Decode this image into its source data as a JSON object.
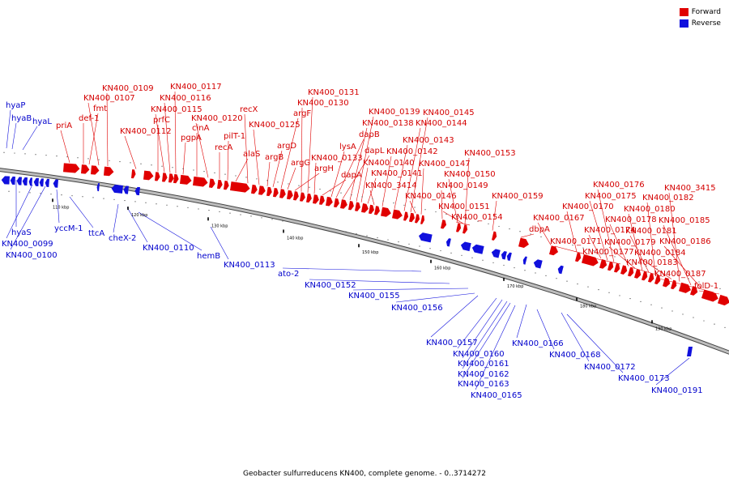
{
  "colors": {
    "forward": "#e00000",
    "reverse": "#1010dd",
    "backbone": "#808080"
  },
  "legend": [
    {
      "label": "Forward",
      "color": "#e00000"
    },
    {
      "label": "Reverse",
      "color": "#1010dd"
    }
  ],
  "caption": "Geobacter sulfurreducens KN400, complete genome. - 0..3714272",
  "ticks": [
    "110 kbp",
    "120 kbp",
    "130 kbp",
    "140 kbp",
    "150 kbp",
    "160 kbp",
    "170 kbp",
    "180 kbp",
    "190 kbp"
  ],
  "forward_labels": [
    "priA",
    "def-1",
    "fmt",
    "KN400_0107",
    "KN400_0109",
    "KN400_0112",
    "prfC",
    "KN400_0115",
    "KN400_0116",
    "KN400_0117",
    "pgpA",
    "cinA",
    "KN400_0120",
    "recA",
    "pilT-1",
    "alaS",
    "recX",
    "KN400_0125",
    "argB",
    "argD",
    "argF",
    "argG",
    "argH",
    "KN400_0130",
    "KN400_0131",
    "KN400_0133",
    "dapA",
    "lysA",
    "dapB",
    "dapL",
    "KN400_0138",
    "KN400_0139",
    "KN400_0140",
    "KN400_0141",
    "KN400_3414",
    "KN400_0142",
    "KN400_0143",
    "KN400_0144",
    "KN400_0145",
    "KN400_0146",
    "KN400_0147",
    "KN400_0149",
    "KN400_0150",
    "KN400_0151",
    "KN400_0153",
    "KN400_0154",
    "KN400_0159",
    "dbpA",
    "KN400_0167",
    "KN400_0170",
    "KN400_0171",
    "KN400_0174",
    "KN400_0175",
    "KN400_0176",
    "KN400_0177",
    "KN400_0178",
    "KN400_0179",
    "KN400_0180",
    "KN400_0181",
    "KN400_0182",
    "KN400_0183",
    "KN400_0184",
    "KN400_3415",
    "KN400_0185",
    "KN400_0186",
    "KN400_0187",
    "folD-1"
  ],
  "reverse_labels": [
    "hyaP",
    "hyaB",
    "hyaL",
    "hyaS",
    "KN400_0099",
    "KN400_0100",
    "yccM-1",
    "ttcA",
    "cheX-2",
    "KN400_0110",
    "hemB",
    "KN400_0113",
    "ato-2",
    "KN400_0152",
    "KN400_0155",
    "KN400_0156",
    "KN400_0157",
    "KN400_0160",
    "KN400_0161",
    "KN400_0162",
    "KN400_0163",
    "KN400_0165",
    "KN400_0166",
    "KN400_0168",
    "KN400_0172",
    "KN400_0173",
    "KN400_0191"
  ]
}
